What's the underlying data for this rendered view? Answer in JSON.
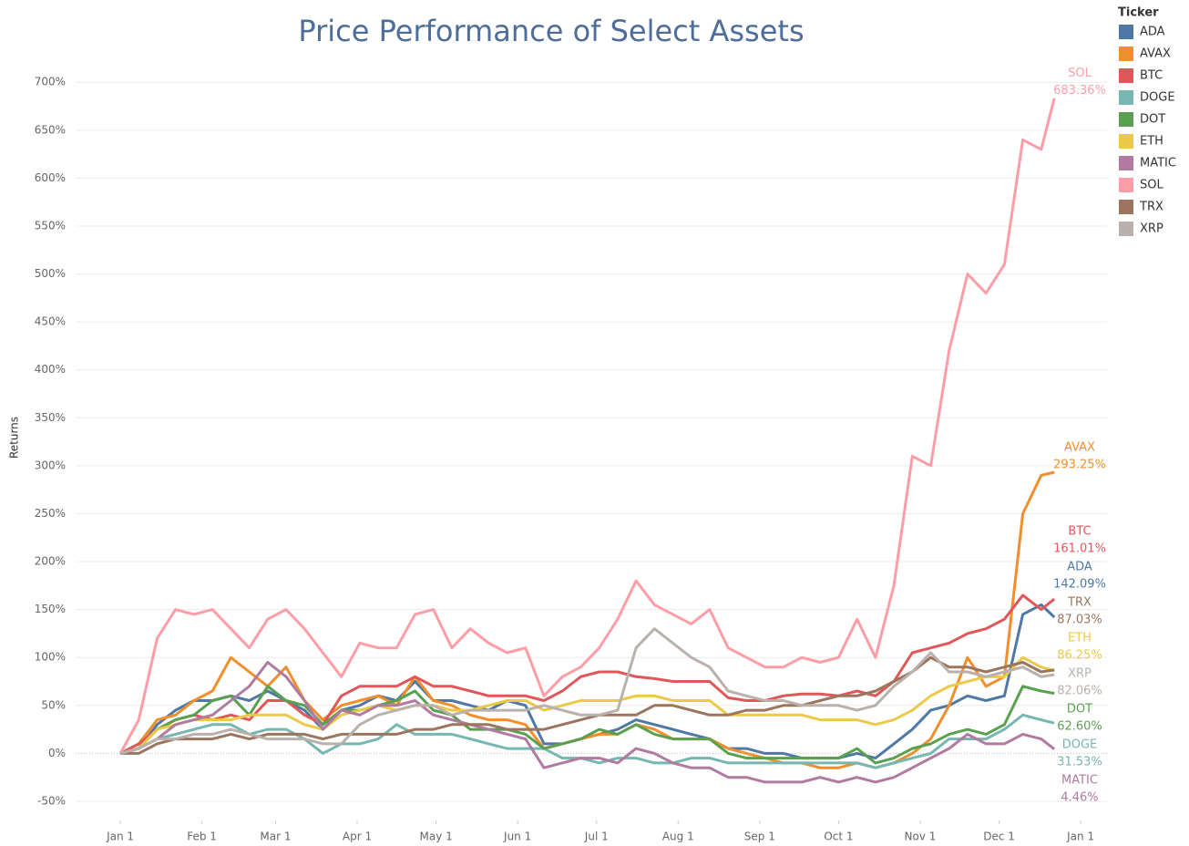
{
  "chart_data": {
    "type": "line",
    "title": "Price Performance of Select Assets",
    "y_label": "Returns",
    "legend_title": "Ticker",
    "legend_position": "right",
    "grid": true,
    "xlim": [
      -17,
      375
    ],
    "xticks": [
      {
        "value": 0,
        "label": "Jan 1"
      },
      {
        "value": 31,
        "label": "Feb 1"
      },
      {
        "value": 59,
        "label": "Mar 1"
      },
      {
        "value": 90,
        "label": "Apr 1"
      },
      {
        "value": 120,
        "label": "May 1"
      },
      {
        "value": 151,
        "label": "Jun 1"
      },
      {
        "value": 181,
        "label": "Jul 1"
      },
      {
        "value": 212,
        "label": "Aug 1"
      },
      {
        "value": 243,
        "label": "Sep 1"
      },
      {
        "value": 273,
        "label": "Oct 1"
      },
      {
        "value": 304,
        "label": "Nov 1"
      },
      {
        "value": 334,
        "label": "Dec 1"
      },
      {
        "value": 365,
        "label": "Jan 1"
      }
    ],
    "ylim": [
      -70,
      724
    ],
    "yticks": [
      {
        "value": -50,
        "label": "-50%"
      },
      {
        "value": 0,
        "label": "0%"
      },
      {
        "value": 50,
        "label": "50%"
      },
      {
        "value": 100,
        "label": "100%"
      },
      {
        "value": 150,
        "label": "150%"
      },
      {
        "value": 200,
        "label": "200%"
      },
      {
        "value": 250,
        "label": "250%"
      },
      {
        "value": 300,
        "label": "300%"
      },
      {
        "value": 350,
        "label": "350%"
      },
      {
        "value": 400,
        "label": "400%"
      },
      {
        "value": 450,
        "label": "450%"
      },
      {
        "value": 500,
        "label": "500%"
      },
      {
        "value": 550,
        "label": "550%"
      },
      {
        "value": 600,
        "label": "600%"
      },
      {
        "value": 650,
        "label": "650%"
      },
      {
        "value": 700,
        "label": "700%"
      }
    ],
    "x": [
      0,
      7,
      14,
      21,
      28,
      35,
      42,
      49,
      56,
      63,
      70,
      77,
      84,
      91,
      98,
      105,
      112,
      119,
      126,
      133,
      140,
      147,
      154,
      161,
      168,
      175,
      182,
      189,
      196,
      203,
      210,
      217,
      224,
      231,
      238,
      245,
      252,
      259,
      266,
      273,
      280,
      287,
      294,
      301,
      308,
      315,
      322,
      329,
      336,
      343,
      350,
      355
    ],
    "series": [
      {
        "name": "ADA",
        "color": "#4e79a7",
        "end_label": "142.09%",
        "values": [
          0,
          5,
          30,
          45,
          55,
          55,
          60,
          55,
          65,
          55,
          45,
          25,
          45,
          50,
          60,
          55,
          75,
          55,
          55,
          50,
          45,
          55,
          50,
          10,
          10,
          15,
          20,
          25,
          35,
          30,
          25,
          20,
          15,
          5,
          5,
          0,
          0,
          -5,
          -5,
          -5,
          0,
          -5,
          10,
          25,
          45,
          50,
          60,
          55,
          60,
          145,
          155,
          142.09
        ]
      },
      {
        "name": "AVAX",
        "color": "#f28e2b",
        "end_label": "293.25%",
        "values": [
          0,
          10,
          35,
          40,
          55,
          65,
          100,
          85,
          70,
          90,
          55,
          35,
          50,
          55,
          60,
          50,
          80,
          55,
          50,
          40,
          35,
          35,
          30,
          5,
          10,
          15,
          20,
          20,
          30,
          25,
          15,
          15,
          15,
          5,
          0,
          -5,
          -10,
          -10,
          -15,
          -15,
          -10,
          -15,
          -10,
          0,
          15,
          50,
          100,
          70,
          80,
          250,
          290,
          293.25
        ]
      },
      {
        "name": "BTC",
        "color": "#e15759",
        "end_label": "161.01%",
        "values": [
          0,
          10,
          25,
          35,
          40,
          35,
          40,
          35,
          55,
          55,
          40,
          30,
          60,
          70,
          70,
          70,
          80,
          70,
          70,
          65,
          60,
          60,
          60,
          55,
          65,
          80,
          85,
          85,
          80,
          78,
          75,
          75,
          75,
          58,
          55,
          55,
          60,
          62,
          62,
          60,
          65,
          60,
          75,
          105,
          110,
          115,
          125,
          130,
          140,
          165,
          150,
          161.01
        ]
      },
      {
        "name": "DOGE",
        "color": "#76b7b2",
        "end_label": "31.53%",
        "values": [
          0,
          5,
          15,
          20,
          25,
          30,
          30,
          20,
          25,
          25,
          15,
          0,
          10,
          10,
          15,
          30,
          20,
          20,
          20,
          15,
          10,
          5,
          5,
          5,
          -5,
          -5,
          -10,
          -5,
          -5,
          -10,
          -10,
          -5,
          -5,
          -10,
          -10,
          -10,
          -10,
          -10,
          -10,
          -10,
          -10,
          -15,
          -10,
          -5,
          0,
          15,
          15,
          15,
          25,
          40,
          35,
          31.53
        ]
      },
      {
        "name": "DOT",
        "color": "#59a14f",
        "end_label": "62.60%",
        "values": [
          0,
          5,
          25,
          35,
          40,
          55,
          60,
          40,
          70,
          55,
          50,
          30,
          45,
          45,
          50,
          55,
          65,
          45,
          40,
          25,
          25,
          25,
          20,
          5,
          10,
          15,
          25,
          20,
          30,
          20,
          15,
          15,
          15,
          0,
          -5,
          -5,
          -5,
          -5,
          -5,
          -5,
          5,
          -10,
          -5,
          5,
          10,
          20,
          25,
          20,
          30,
          70,
          65,
          62.6
        ]
      },
      {
        "name": "ETH",
        "color": "#edc948",
        "end_label": "86.25%",
        "values": [
          0,
          5,
          25,
          30,
          35,
          35,
          35,
          40,
          40,
          40,
          30,
          25,
          40,
          45,
          50,
          45,
          50,
          50,
          45,
          45,
          50,
          55,
          55,
          45,
          50,
          55,
          55,
          55,
          60,
          60,
          55,
          55,
          55,
          40,
          40,
          40,
          40,
          40,
          35,
          35,
          35,
          30,
          35,
          45,
          60,
          70,
          75,
          80,
          80,
          100,
          90,
          86.25
        ]
      },
      {
        "name": "MATIC",
        "color": "#b07aa1",
        "end_label": "4.46%",
        "values": [
          0,
          5,
          15,
          30,
          35,
          40,
          55,
          70,
          95,
          80,
          55,
          25,
          45,
          40,
          50,
          50,
          55,
          40,
          35,
          30,
          25,
          20,
          15,
          -15,
          -10,
          -5,
          -5,
          -10,
          5,
          0,
          -10,
          -15,
          -15,
          -25,
          -25,
          -30,
          -30,
          -30,
          -25,
          -30,
          -25,
          -30,
          -25,
          -15,
          -5,
          5,
          20,
          10,
          10,
          20,
          15,
          4.46
        ]
      },
      {
        "name": "SOL",
        "color": "#ff9da7",
        "end_label": "683.36%",
        "values": [
          0,
          35,
          120,
          150,
          145,
          150,
          130,
          110,
          140,
          150,
          130,
          105,
          80,
          115,
          110,
          110,
          145,
          150,
          110,
          130,
          115,
          105,
          110,
          60,
          80,
          90,
          110,
          140,
          180,
          155,
          145,
          135,
          150,
          110,
          100,
          90,
          90,
          100,
          95,
          100,
          140,
          100,
          175,
          310,
          300,
          420,
          500,
          480,
          510,
          640,
          630,
          683.36
        ]
      },
      {
        "name": "TRX",
        "color": "#9c755f",
        "end_label": "87.03%",
        "values": [
          0,
          0,
          10,
          15,
          15,
          15,
          20,
          15,
          20,
          20,
          20,
          15,
          20,
          20,
          20,
          20,
          25,
          25,
          30,
          30,
          30,
          25,
          25,
          25,
          30,
          35,
          40,
          40,
          40,
          50,
          50,
          45,
          40,
          40,
          45,
          45,
          50,
          50,
          55,
          60,
          60,
          65,
          75,
          85,
          100,
          90,
          90,
          85,
          90,
          95,
          85,
          87.03
        ]
      },
      {
        "name": "XRP",
        "color": "#bab0ac",
        "end_label": "82.06%",
        "values": [
          0,
          5,
          15,
          15,
          20,
          20,
          25,
          20,
          15,
          15,
          15,
          10,
          10,
          30,
          40,
          45,
          50,
          50,
          40,
          45,
          45,
          45,
          45,
          50,
          45,
          40,
          40,
          45,
          110,
          130,
          115,
          100,
          90,
          65,
          60,
          55,
          55,
          50,
          50,
          50,
          45,
          50,
          70,
          85,
          105,
          85,
          85,
          80,
          85,
          90,
          80,
          82.06
        ]
      }
    ]
  }
}
